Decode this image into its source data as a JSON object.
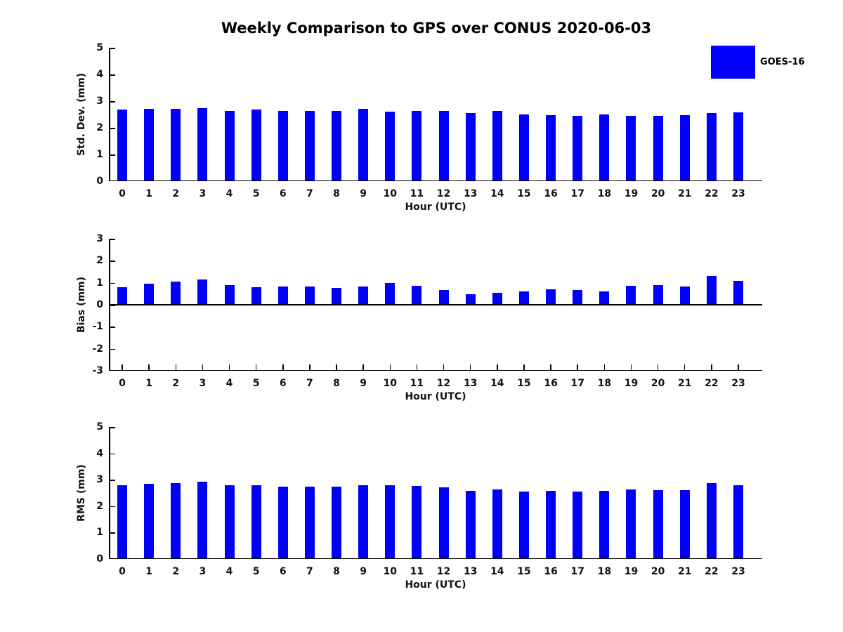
{
  "title": "Weekly Comparison to GPS over CONUS 2020-06-03",
  "legend": {
    "label": "GOES-16",
    "swatch_color": "#0000fa",
    "position": "top-right"
  },
  "colors": {
    "bar": "#0000fa",
    "axis": "#000000",
    "text": "#111111"
  },
  "chart_data": [
    {
      "type": "bar",
      "title": "",
      "xlabel": "Hour (UTC)",
      "ylabel": "Std. Dev. (mm)",
      "categories": [
        "0",
        "1",
        "2",
        "3",
        "4",
        "5",
        "6",
        "7",
        "8",
        "9",
        "10",
        "11",
        "12",
        "13",
        "14",
        "15",
        "16",
        "17",
        "18",
        "19",
        "20",
        "21",
        "22",
        "23"
      ],
      "values": [
        2.69,
        2.72,
        2.72,
        2.75,
        2.64,
        2.68,
        2.62,
        2.62,
        2.64,
        2.7,
        2.61,
        2.64,
        2.62,
        2.55,
        2.64,
        2.51,
        2.48,
        2.45,
        2.5,
        2.44,
        2.45,
        2.47,
        2.55,
        2.57
      ],
      "series_name": "GOES-16",
      "ylim": [
        0,
        5
      ],
      "yticks": [
        0,
        1,
        2,
        3,
        4,
        5
      ],
      "grid": false,
      "legend_position": "none"
    },
    {
      "type": "bar",
      "title": "",
      "xlabel": "Hour (UTC)",
      "ylabel": "Bias (mm)",
      "categories": [
        "0",
        "1",
        "2",
        "3",
        "4",
        "5",
        "6",
        "7",
        "8",
        "9",
        "10",
        "11",
        "12",
        "13",
        "14",
        "15",
        "16",
        "17",
        "18",
        "19",
        "20",
        "21",
        "22",
        "23"
      ],
      "values": [
        0.79,
        0.95,
        1.05,
        1.14,
        0.88,
        0.8,
        0.83,
        0.83,
        0.77,
        0.82,
        1.0,
        0.87,
        0.66,
        0.49,
        0.53,
        0.61,
        0.69,
        0.66,
        0.6,
        0.87,
        0.88,
        0.84,
        1.31,
        1.07
      ],
      "series_name": "GOES-16",
      "ylim": [
        -3,
        3
      ],
      "yticks": [
        3,
        2,
        1,
        0,
        -1,
        -2,
        -3
      ],
      "grid": false,
      "legend_position": "none"
    },
    {
      "type": "bar",
      "title": "",
      "xlabel": "Hour (UTC)",
      "ylabel": "RMS (mm)",
      "categories": [
        "0",
        "1",
        "2",
        "3",
        "4",
        "5",
        "6",
        "7",
        "8",
        "9",
        "10",
        "11",
        "12",
        "13",
        "14",
        "15",
        "16",
        "17",
        "18",
        "19",
        "20",
        "21",
        "22",
        "23"
      ],
      "values": [
        2.8,
        2.85,
        2.88,
        2.93,
        2.78,
        2.78,
        2.73,
        2.73,
        2.73,
        2.8,
        2.8,
        2.76,
        2.72,
        2.58,
        2.64,
        2.56,
        2.58,
        2.54,
        2.59,
        2.62,
        2.61,
        2.6,
        2.86,
        2.79
      ],
      "series_name": "GOES-16",
      "ylim": [
        0,
        5
      ],
      "yticks": [
        0,
        1,
        2,
        3,
        4,
        5
      ],
      "grid": false,
      "legend_position": "none"
    }
  ]
}
